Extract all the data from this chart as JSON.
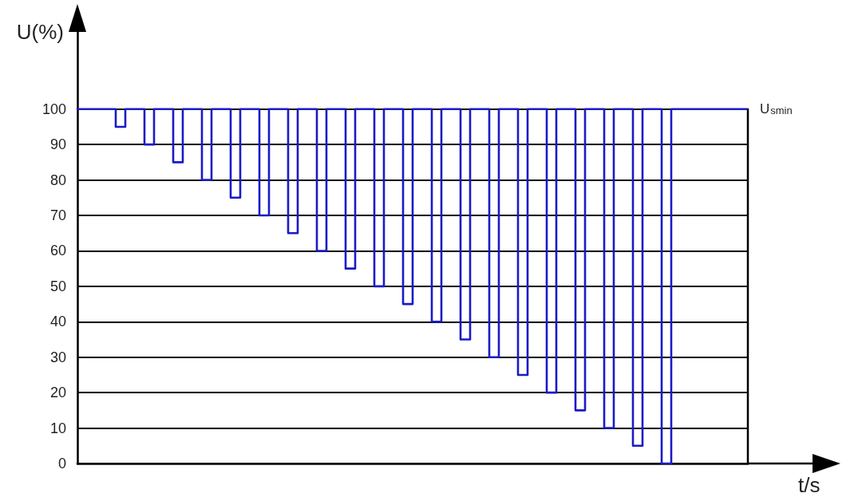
{
  "chart_data": {
    "type": "step",
    "xlabel": "t/s",
    "ylabel": "U(%)",
    "categories": [
      null,
      null,
      null,
      null,
      null,
      null,
      null,
      null,
      null,
      null,
      null,
      null,
      null,
      null,
      null,
      null,
      null,
      null,
      null,
      null,
      null,
      null,
      null,
      null,
      null,
      null,
      null,
      null,
      null,
      null,
      null,
      null,
      null,
      null,
      null,
      null,
      null,
      null,
      null,
      null,
      null,
      null,
      null,
      null,
      null,
      null,
      null,
      null,
      null,
      null,
      null,
      null,
      null,
      null,
      null,
      null,
      null,
      null,
      null,
      null,
      null,
      null,
      null,
      null,
      null,
      null,
      null,
      null,
      null,
      null,
      null
    ],
    "values": [
      100,
      100,
      100,
      100,
      95,
      100,
      100,
      90,
      100,
      100,
      85,
      100,
      100,
      80,
      100,
      100,
      75,
      100,
      100,
      70,
      100,
      100,
      65,
      100,
      100,
      60,
      100,
      100,
      55,
      100,
      100,
      50,
      100,
      100,
      45,
      100,
      100,
      40,
      100,
      100,
      35,
      100,
      100,
      30,
      100,
      100,
      25,
      100,
      100,
      20,
      100,
      100,
      15,
      100,
      100,
      10,
      100,
      100,
      5,
      100,
      100,
      0,
      100,
      100,
      100,
      100,
      100,
      100,
      100,
      100,
      100
    ],
    "color": "#1a1ac8",
    "ylim": [
      0,
      122
    ],
    "yticks": [
      0,
      10,
      20,
      30,
      40,
      50,
      60,
      70,
      80,
      90,
      100
    ],
    "grid": "y",
    "tick_labels": "y",
    "marker": "none",
    "line_style": "solid",
    "annotations": [
      "U$_{smin}$"
    ]
  }
}
